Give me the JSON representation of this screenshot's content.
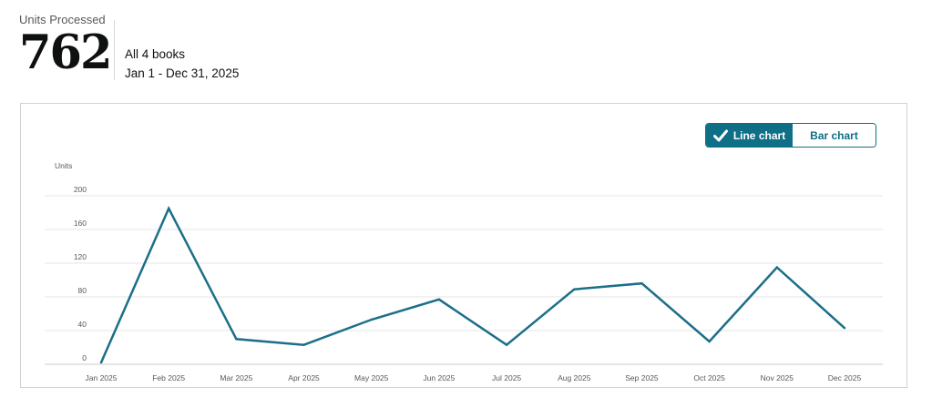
{
  "summary": {
    "label": "Units Processed",
    "value": "762",
    "scope": "All 4 books",
    "date_range": "Jan 1 - Dec 31, 2025"
  },
  "chart_toggle": {
    "line_label": "Line chart",
    "bar_label": "Bar chart",
    "selected": "line",
    "check_icon": "checkmark-icon"
  },
  "colors": {
    "accent": "#0f6f86",
    "line": "#1b6f88",
    "grid": "#e3e6e6",
    "axis_text": "#565959"
  },
  "chart_data": {
    "type": "line",
    "ylabel": "Units",
    "xlabel": "",
    "title": "",
    "ylim": [
      0,
      200
    ],
    "yticks": [
      0,
      40,
      80,
      120,
      160,
      200
    ],
    "grid": true,
    "categories": [
      "Jan 2025",
      "Feb 2025",
      "Mar 2025",
      "Apr 2025",
      "May 2025",
      "Jun 2025",
      "Jul 2025",
      "Aug 2025",
      "Sep 2025",
      "Oct 2025",
      "Nov 2025",
      "Dec 2025"
    ],
    "series": [
      {
        "values": [
          2,
          185,
          30,
          23,
          53,
          77,
          23,
          89,
          96,
          27,
          115,
          43
        ]
      }
    ]
  }
}
